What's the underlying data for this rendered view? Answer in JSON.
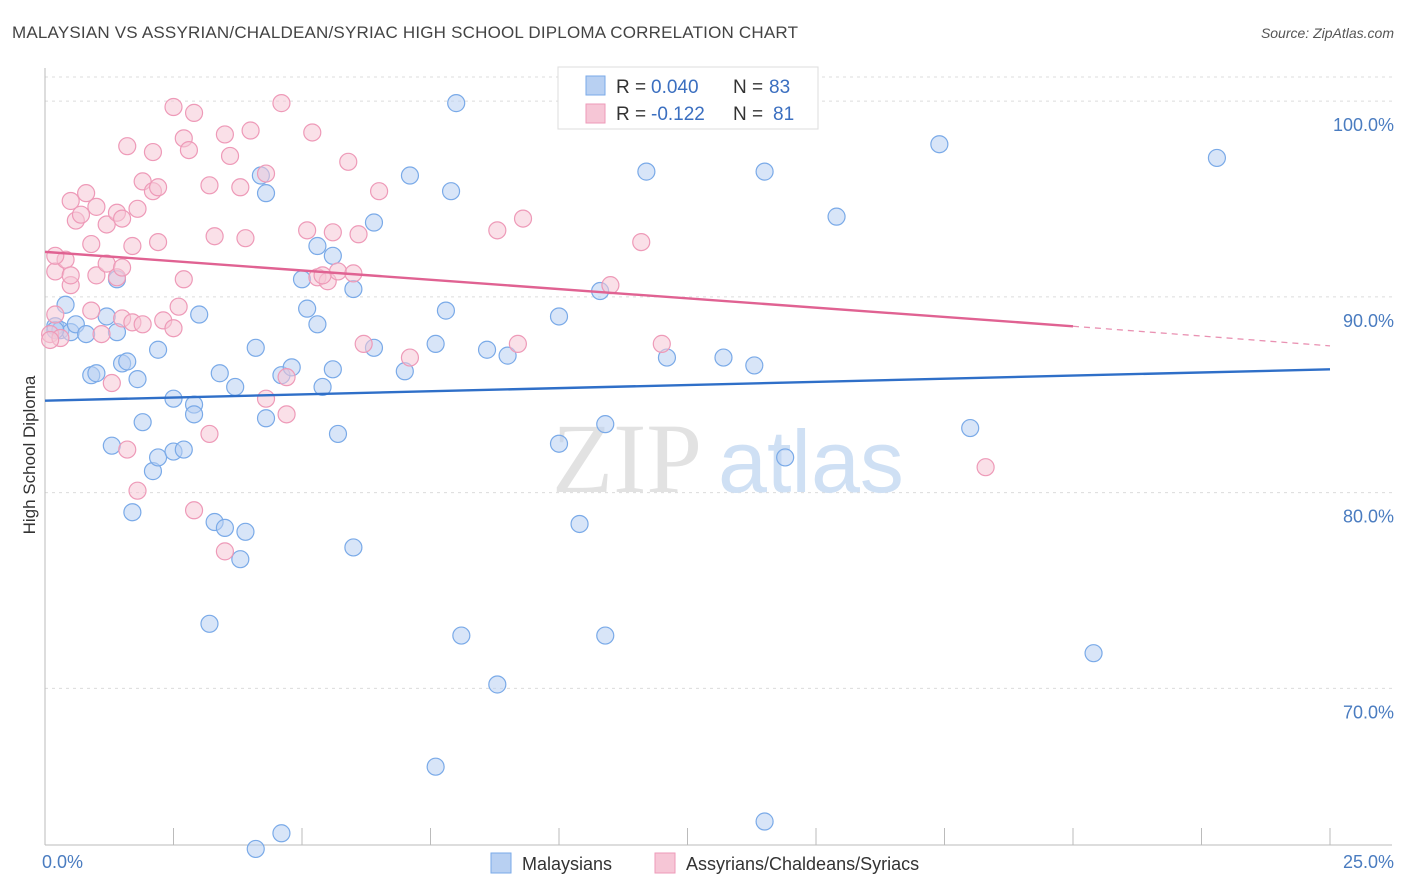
{
  "chart_data": {
    "type": "scatter",
    "title": "MALAYSIAN VS ASSYRIAN/CHALDEAN/SYRIAC HIGH SCHOOL DIPLOMA CORRELATION CHART",
    "source": "Source: ZipAtlas.com",
    "ylabel": "High School Diploma",
    "xlim": [
      0,
      25
    ],
    "ylim": [
      62,
      102
    ],
    "x_tick_labels": [
      "0.0%",
      "25.0%"
    ],
    "y_ticks": [
      70,
      80,
      90,
      100
    ],
    "y_tick_labels": [
      "70.0%",
      "80.0%",
      "90.0%",
      "100.0%"
    ],
    "grid": true,
    "legend_placement": "top-center",
    "watermark": "ZIPatlas",
    "legend": {
      "rows": [
        {
          "r_label": "R =",
          "r_value": "0.040",
          "n_label": "N =",
          "n_value": "83"
        },
        {
          "r_label": "R =",
          "r_value": "-0.122",
          "n_label": "N =",
          "n_value": "81"
        }
      ]
    },
    "series": [
      {
        "name": "Malaysians",
        "color": "#7aaae8",
        "fill": "#b8d0f2",
        "trend_color": "#2f6fc8",
        "trend": {
          "x": [
            0,
            25
          ],
          "y": [
            84.7,
            86.3
          ]
        },
        "points": [
          [
            0.2,
            88.5
          ],
          [
            0.3,
            88.3
          ],
          [
            0.4,
            89.6
          ],
          [
            0.5,
            88.2
          ],
          [
            0.6,
            88.6
          ],
          [
            0.8,
            88.1
          ],
          [
            1.2,
            89.0
          ],
          [
            1.4,
            88.2
          ],
          [
            0.9,
            86.0
          ],
          [
            1.0,
            86.1
          ],
          [
            1.5,
            86.6
          ],
          [
            1.6,
            86.7
          ],
          [
            1.8,
            85.8
          ],
          [
            2.2,
            87.3
          ],
          [
            2.5,
            84.8
          ],
          [
            2.9,
            84.5
          ],
          [
            2.9,
            84.0
          ],
          [
            3.0,
            89.1
          ],
          [
            3.4,
            86.1
          ],
          [
            3.7,
            85.4
          ],
          [
            4.1,
            87.4
          ],
          [
            4.3,
            83.8
          ],
          [
            4.6,
            86.0
          ],
          [
            4.8,
            86.4
          ],
          [
            5.1,
            89.4
          ],
          [
            5.3,
            88.6
          ],
          [
            5.4,
            85.4
          ],
          [
            5.6,
            86.3
          ],
          [
            6.0,
            90.4
          ],
          [
            6.4,
            87.4
          ],
          [
            7.0,
            86.2
          ],
          [
            7.6,
            87.6
          ],
          [
            7.8,
            89.3
          ],
          [
            8.6,
            87.3
          ],
          [
            9.0,
            87.0
          ],
          [
            10.0,
            89.0
          ],
          [
            10.8,
            90.3
          ],
          [
            12.1,
            86.9
          ],
          [
            13.2,
            86.9
          ],
          [
            13.8,
            86.5
          ],
          [
            1.3,
            82.4
          ],
          [
            1.9,
            83.6
          ],
          [
            2.1,
            81.1
          ],
          [
            2.2,
            81.8
          ],
          [
            2.5,
            82.1
          ],
          [
            2.7,
            82.2
          ],
          [
            3.3,
            78.5
          ],
          [
            3.5,
            78.2
          ],
          [
            3.9,
            78.0
          ],
          [
            3.8,
            76.6
          ],
          [
            1.7,
            79.0
          ],
          [
            3.2,
            73.3
          ],
          [
            5.7,
            83.0
          ],
          [
            6.0,
            77.2
          ],
          [
            10.0,
            82.5
          ],
          [
            10.4,
            78.4
          ],
          [
            10.9,
            83.5
          ],
          [
            14.4,
            81.8
          ],
          [
            18.0,
            83.3
          ],
          [
            8.1,
            72.7
          ],
          [
            8.8,
            70.2
          ],
          [
            10.9,
            72.7
          ],
          [
            7.6,
            66.0
          ],
          [
            14.0,
            63.2
          ],
          [
            4.1,
            61.8
          ],
          [
            4.6,
            62.6
          ],
          [
            20.4,
            71.8
          ],
          [
            22.8,
            97.1
          ],
          [
            17.4,
            97.8
          ],
          [
            15.4,
            94.1
          ],
          [
            14.0,
            96.4
          ],
          [
            11.7,
            96.4
          ],
          [
            8.0,
            99.9
          ],
          [
            7.1,
            96.2
          ],
          [
            7.9,
            95.4
          ],
          [
            4.2,
            96.2
          ],
          [
            4.3,
            95.3
          ],
          [
            6.4,
            93.8
          ],
          [
            5.3,
            92.6
          ],
          [
            5.6,
            92.1
          ],
          [
            5.0,
            90.9
          ],
          [
            1.4,
            90.9
          ],
          [
            0.2,
            88.3
          ]
        ]
      },
      {
        "name": "Assyrians/Chaldeans/Syriacs",
        "color": "#ee9ab8",
        "fill": "#f6c6d6",
        "trend_color": "#e06292",
        "trend": {
          "x": [
            0,
            20
          ],
          "y": [
            92.3,
            88.5
          ]
        },
        "trend_dashed": {
          "x": [
            20,
            25
          ],
          "y": [
            88.5,
            87.5
          ]
        },
        "points": [
          [
            0.1,
            88.1
          ],
          [
            0.2,
            89.1
          ],
          [
            0.3,
            87.9
          ],
          [
            0.2,
            91.3
          ],
          [
            0.4,
            91.9
          ],
          [
            0.2,
            92.1
          ],
          [
            0.5,
            90.6
          ],
          [
            0.5,
            91.1
          ],
          [
            0.6,
            93.9
          ],
          [
            0.5,
            94.9
          ],
          [
            0.8,
            95.3
          ],
          [
            0.9,
            92.7
          ],
          [
            0.7,
            94.2
          ],
          [
            1.0,
            94.6
          ],
          [
            1.0,
            91.1
          ],
          [
            1.2,
            91.7
          ],
          [
            1.2,
            93.7
          ],
          [
            1.4,
            94.3
          ],
          [
            1.4,
            91.0
          ],
          [
            1.5,
            91.5
          ],
          [
            1.5,
            94.0
          ],
          [
            1.6,
            97.7
          ],
          [
            1.7,
            92.6
          ],
          [
            1.8,
            94.5
          ],
          [
            1.9,
            95.9
          ],
          [
            2.1,
            97.4
          ],
          [
            2.1,
            95.4
          ],
          [
            2.2,
            95.6
          ],
          [
            2.2,
            92.8
          ],
          [
            2.5,
            99.7
          ],
          [
            2.7,
            98.1
          ],
          [
            2.8,
            97.5
          ],
          [
            2.9,
            99.4
          ],
          [
            3.2,
            95.7
          ],
          [
            3.3,
            93.1
          ],
          [
            3.5,
            98.3
          ],
          [
            3.6,
            97.2
          ],
          [
            3.8,
            95.6
          ],
          [
            3.9,
            93.0
          ],
          [
            4.0,
            98.5
          ],
          [
            4.3,
            96.3
          ],
          [
            4.6,
            99.9
          ],
          [
            5.1,
            93.4
          ],
          [
            5.2,
            98.4
          ],
          [
            5.6,
            93.3
          ],
          [
            5.9,
            96.9
          ],
          [
            6.1,
            93.2
          ],
          [
            6.5,
            95.4
          ],
          [
            0.9,
            89.3
          ],
          [
            1.1,
            88.1
          ],
          [
            1.5,
            88.9
          ],
          [
            1.7,
            88.7
          ],
          [
            1.9,
            88.6
          ],
          [
            2.3,
            88.8
          ],
          [
            2.5,
            88.4
          ],
          [
            2.6,
            89.5
          ],
          [
            2.7,
            90.9
          ],
          [
            1.3,
            85.6
          ],
          [
            3.2,
            83.0
          ],
          [
            3.5,
            77.0
          ],
          [
            2.9,
            79.1
          ],
          [
            1.6,
            82.2
          ],
          [
            1.8,
            80.1
          ],
          [
            4.3,
            84.8
          ],
          [
            4.7,
            84.0
          ],
          [
            4.7,
            85.9
          ],
          [
            5.3,
            91.0
          ],
          [
            5.5,
            90.8
          ],
          [
            5.7,
            91.3
          ],
          [
            6.0,
            91.2
          ],
          [
            9.3,
            94.0
          ],
          [
            8.8,
            93.4
          ],
          [
            7.1,
            86.9
          ],
          [
            9.2,
            87.6
          ],
          [
            11.0,
            90.6
          ],
          [
            12.0,
            87.6
          ],
          [
            11.6,
            92.8
          ],
          [
            18.3,
            81.3
          ],
          [
            5.4,
            91.1
          ],
          [
            6.2,
            87.6
          ],
          [
            0.1,
            87.8
          ]
        ]
      }
    ]
  }
}
